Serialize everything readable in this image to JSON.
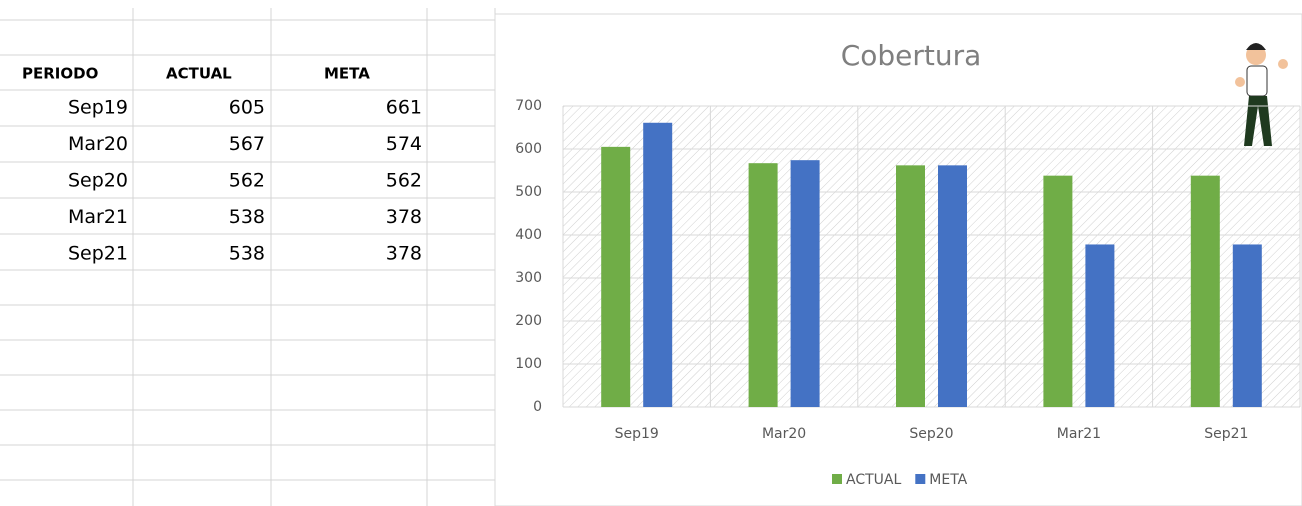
{
  "table": {
    "headers": [
      "PERIODO",
      "ACTUAL",
      "META"
    ],
    "rows": [
      [
        "Sep19",
        605,
        661
      ],
      [
        "Mar20",
        567,
        574
      ],
      [
        "Sep20",
        562,
        562
      ],
      [
        "Mar21",
        538,
        378
      ],
      [
        "Sep21",
        538,
        378
      ]
    ]
  },
  "chart_data": {
    "type": "bar",
    "title": "Cobertura",
    "categories": [
      "Sep19",
      "Mar20",
      "Sep20",
      "Mar21",
      "Sep21"
    ],
    "series": [
      {
        "name": "ACTUAL",
        "color": "#70ad47",
        "values": [
          605,
          567,
          562,
          538,
          538
        ]
      },
      {
        "name": "META",
        "color": "#4472c4",
        "values": [
          661,
          574,
          562,
          378,
          378
        ]
      }
    ],
    "ylim": [
      0,
      700
    ],
    "yticks": [
      0,
      100,
      200,
      300,
      400,
      500,
      600,
      700
    ],
    "grid": true,
    "legend": "bottom"
  }
}
